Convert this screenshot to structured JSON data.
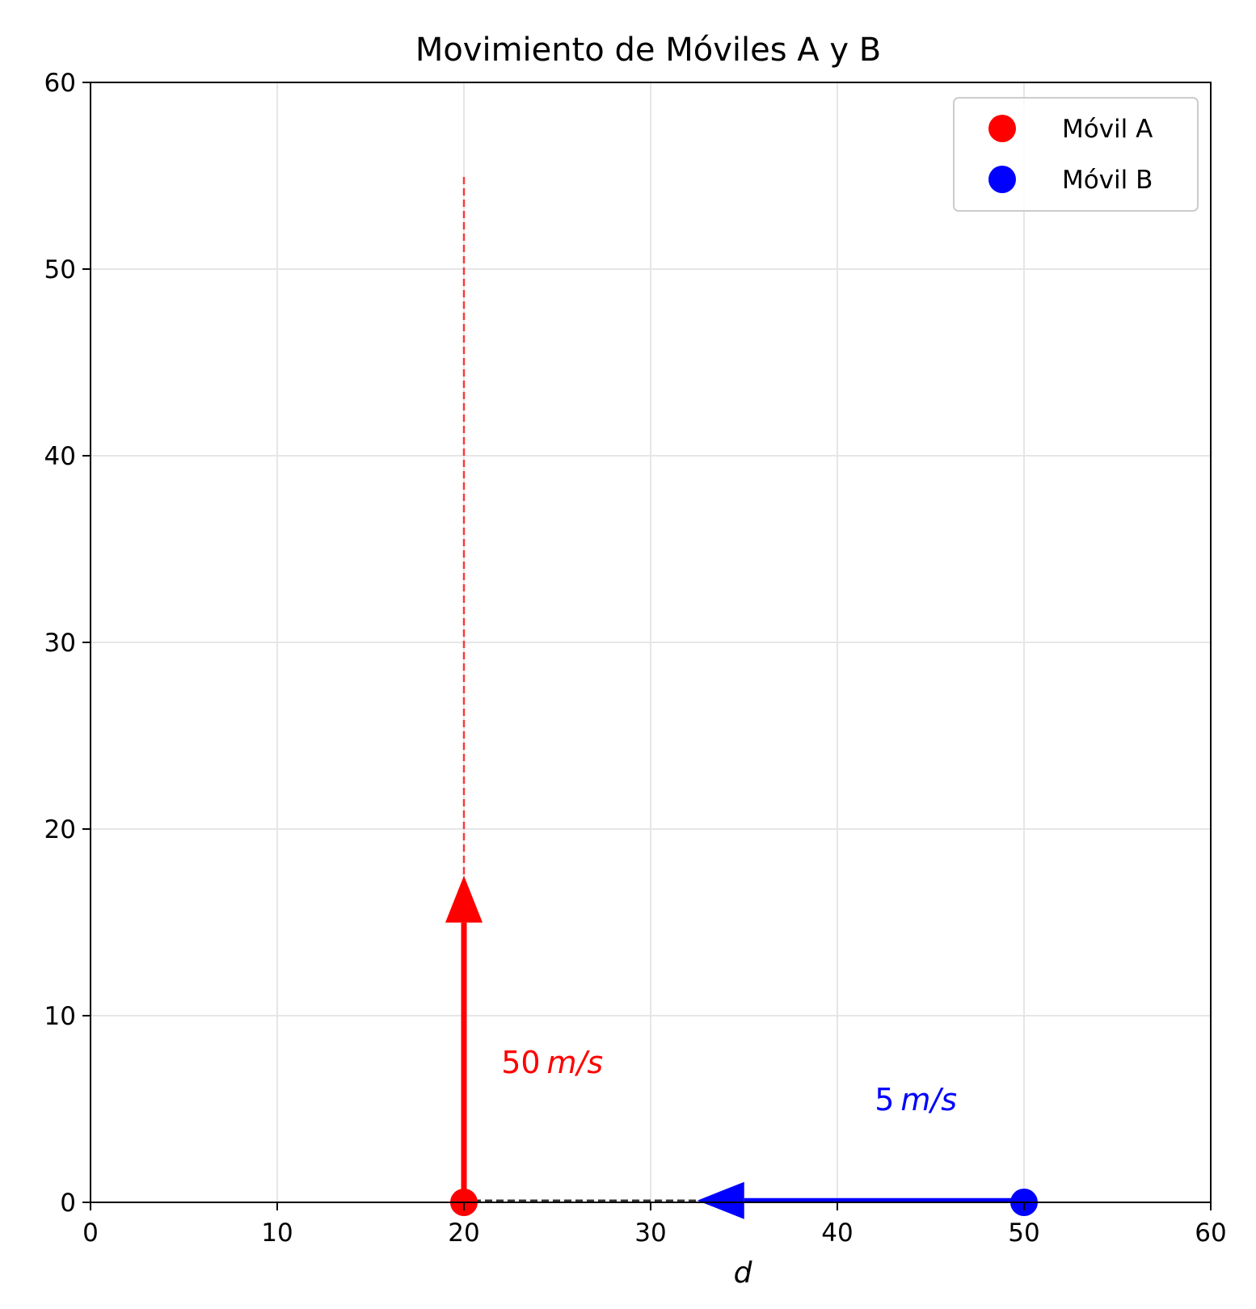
{
  "chart_data": {
    "type": "scatter",
    "title": "Movimiento de Móviles A y B",
    "xlabel": "d",
    "ylabel": "",
    "xlim": [
      0,
      60
    ],
    "ylim": [
      0,
      60
    ],
    "xticks": [
      0,
      10,
      20,
      30,
      40,
      50,
      60
    ],
    "yticks": [
      0,
      10,
      20,
      30,
      40,
      50,
      60
    ],
    "grid": true,
    "legend_position": "top-right",
    "series": [
      {
        "name": "Móvil A",
        "color": "#ff0000",
        "points": [
          {
            "x": 20,
            "y": 0
          }
        ],
        "arrow": {
          "from": [
            20,
            0
          ],
          "to": [
            20,
            17.5
          ]
        },
        "path": {
          "from": [
            20,
            0
          ],
          "to": [
            20,
            55
          ],
          "style": "dashed"
        },
        "label": {
          "value": "50",
          "unit": "m/s",
          "at": [
            22,
            7.5
          ]
        }
      },
      {
        "name": "Móvil B",
        "color": "#0000ff",
        "points": [
          {
            "x": 50,
            "y": 0
          }
        ],
        "arrow": {
          "from": [
            50,
            0.1
          ],
          "to": [
            32.5,
            0.1
          ]
        },
        "path": {
          "from": [
            50,
            0.1
          ],
          "to": [
            20,
            0.1
          ],
          "style": "dashed"
        },
        "label": {
          "value": "5",
          "unit": "m/s",
          "at": [
            42,
            5.5
          ]
        }
      }
    ]
  }
}
